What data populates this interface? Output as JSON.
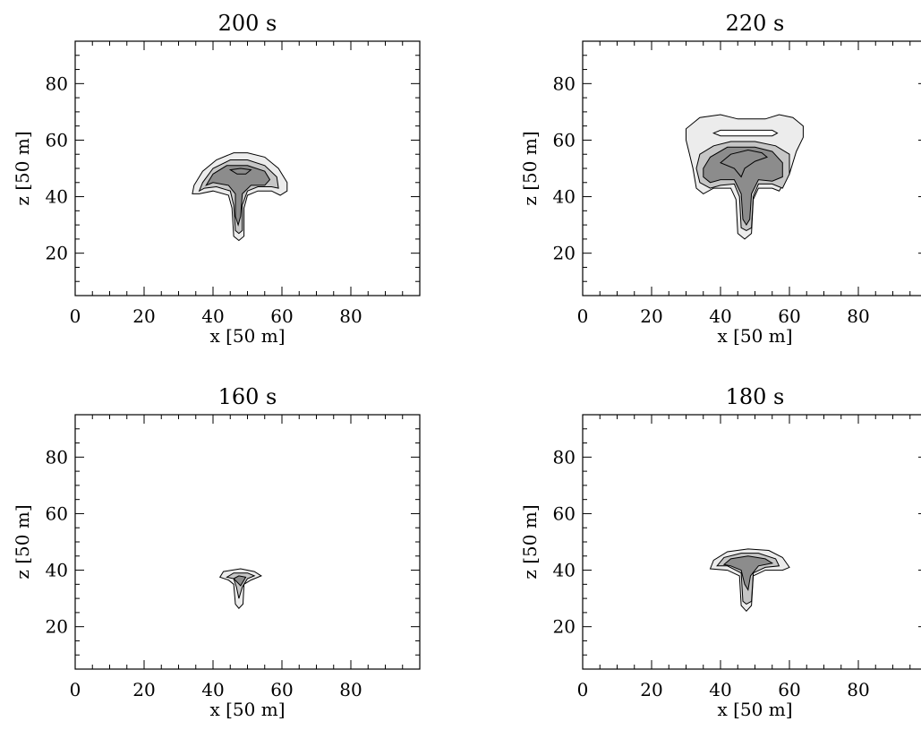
{
  "chart_data": [
    {
      "type": "contour",
      "title": "200 s",
      "xlabel": "x  [50 m]",
      "ylabel": "z  [50 m]",
      "xlim": [
        0,
        100
      ],
      "ylim": [
        5,
        95
      ],
      "xticks": [
        0,
        20,
        40,
        60,
        80
      ],
      "yticks": [
        20,
        40,
        60,
        80
      ],
      "grid": false,
      "contours": [
        {
          "level": 1,
          "fill": "#ececec",
          "points": [
            [
              34,
              41
            ],
            [
              34.5,
              44
            ],
            [
              37,
              49
            ],
            [
              41,
              53
            ],
            [
              46,
              55.5
            ],
            [
              50,
              55.5
            ],
            [
              55,
              54
            ],
            [
              59,
              50
            ],
            [
              61.5,
              45
            ],
            [
              61.5,
              42
            ],
            [
              59.5,
              40.5
            ],
            [
              57,
              42
            ],
            [
              53,
              42
            ],
            [
              50,
              40.5
            ],
            [
              49,
              36
            ],
            [
              49,
              26
            ],
            [
              47.5,
              24.5
            ],
            [
              46,
              26
            ],
            [
              45.5,
              36
            ],
            [
              44.5,
              40.5
            ],
            [
              40,
              42
            ],
            [
              36,
              41
            ],
            [
              34,
              41
            ]
          ]
        },
        {
          "level": 2,
          "fill": "#c6c6c6",
          "points": [
            [
              36,
              42
            ],
            [
              37,
              45
            ],
            [
              40,
              50
            ],
            [
              45,
              53
            ],
            [
              50,
              53
            ],
            [
              55,
              51
            ],
            [
              58.5,
              47
            ],
            [
              59,
              43
            ],
            [
              57,
              43.5
            ],
            [
              53,
              43.5
            ],
            [
              50,
              42
            ],
            [
              48.5,
              37
            ],
            [
              48.5,
              28
            ],
            [
              47.5,
              27
            ],
            [
              46.5,
              28
            ],
            [
              46,
              37
            ],
            [
              45,
              42
            ],
            [
              41,
              43.5
            ],
            [
              37.5,
              43
            ],
            [
              36,
              42
            ]
          ]
        },
        {
          "level": 3,
          "fill": "#8c8c8c",
          "points": [
            [
              38,
              44
            ],
            [
              40,
              48
            ],
            [
              44,
              51
            ],
            [
              50,
              51
            ],
            [
              55,
              49
            ],
            [
              56.5,
              46
            ],
            [
              55,
              44
            ],
            [
              51,
              44
            ],
            [
              48.5,
              41
            ],
            [
              48,
              33
            ],
            [
              47.3,
              30
            ],
            [
              46.5,
              33
            ],
            [
              46.5,
              41
            ],
            [
              44.5,
              44
            ],
            [
              40,
              45
            ],
            [
              38,
              44
            ]
          ]
        },
        {
          "level": 4,
          "fill": "#8c8c8c",
          "points": [
            [
              45,
              49.5
            ],
            [
              47,
              48
            ],
            [
              49.5,
              48
            ],
            [
              51,
              49.5
            ],
            [
              48,
              50
            ],
            [
              45,
              49.5
            ]
          ]
        }
      ]
    },
    {
      "type": "contour",
      "title": "220 s",
      "xlabel": "x  [50 m]",
      "ylabel": "z  [50 m]",
      "xlim": [
        0,
        100
      ],
      "ylim": [
        5,
        95
      ],
      "xticks": [
        0,
        20,
        40,
        60,
        80
      ],
      "yticks": [
        20,
        40,
        60,
        80
      ],
      "grid": false,
      "contours": [
        {
          "level": 1,
          "fill": "#ececec",
          "points": [
            [
              30,
              60
            ],
            [
              30,
              64
            ],
            [
              34,
              68
            ],
            [
              40,
              69
            ],
            [
              45,
              67.5
            ],
            [
              53,
              67.5
            ],
            [
              57,
              69
            ],
            [
              61,
              68
            ],
            [
              64,
              65
            ],
            [
              64,
              61
            ],
            [
              62,
              56
            ],
            [
              60,
              48
            ],
            [
              57,
              42
            ],
            [
              55,
              43
            ],
            [
              51,
              43
            ],
            [
              49.5,
              39
            ],
            [
              49,
              27
            ],
            [
              47,
              25
            ],
            [
              45,
              27
            ],
            [
              44.5,
              39
            ],
            [
              43,
              43
            ],
            [
              38,
              43
            ],
            [
              35,
              41
            ],
            [
              33,
              43
            ],
            [
              32,
              50
            ],
            [
              31,
              55
            ],
            [
              30,
              60
            ]
          ]
        },
        {
          "level": 2,
          "fill": "#c6c6c6",
          "points": [
            [
              33,
              50
            ],
            [
              34,
              55
            ],
            [
              38,
              58
            ],
            [
              43,
              59.5
            ],
            [
              50,
              59.5
            ],
            [
              56,
              58
            ],
            [
              60,
              55
            ],
            [
              60,
              48
            ],
            [
              58,
              43
            ],
            [
              55,
              44.5
            ],
            [
              51,
              44.5
            ],
            [
              49.5,
              40
            ],
            [
              49,
              29
            ],
            [
              47.5,
              28
            ],
            [
              46,
              29
            ],
            [
              45.5,
              40
            ],
            [
              44,
              44.5
            ],
            [
              40,
              44
            ],
            [
              37,
              43
            ],
            [
              34,
              45
            ],
            [
              33,
              50
            ]
          ]
        },
        {
          "level": 3,
          "fill": "#8c8c8c",
          "points": [
            [
              35,
              50
            ],
            [
              37,
              54
            ],
            [
              42,
              57.5
            ],
            [
              50,
              57.5
            ],
            [
              55,
              56
            ],
            [
              58,
              52
            ],
            [
              58,
              47
            ],
            [
              55,
              45.5
            ],
            [
              51,
              46
            ],
            [
              49,
              41
            ],
            [
              48.5,
              32
            ],
            [
              47.5,
              30
            ],
            [
              46.5,
              32
            ],
            [
              46,
              41
            ],
            [
              44,
              46
            ],
            [
              40,
              46
            ],
            [
              37,
              45
            ],
            [
              35,
              47
            ],
            [
              35,
              50
            ]
          ]
        },
        {
          "level": 4,
          "fill": "#8c8c8c",
          "points": [
            [
              40,
              52
            ],
            [
              43,
              55
            ],
            [
              48,
              56.5
            ],
            [
              52,
              55.5
            ],
            [
              53.5,
              54
            ],
            [
              50,
              52.5
            ],
            [
              47,
              50
            ],
            [
              46,
              47
            ],
            [
              44,
              50
            ],
            [
              40,
              52
            ]
          ]
        },
        {
          "level": 5,
          "fill": "#ffffff",
          "points": [
            [
              38,
              62.5
            ],
            [
              40,
              63.5
            ],
            [
              55,
              63.5
            ],
            [
              56.5,
              62.5
            ],
            [
              55,
              61.5
            ],
            [
              40,
              61.5
            ],
            [
              38,
              62.5
            ]
          ]
        }
      ]
    },
    {
      "type": "contour",
      "title": "160 s",
      "xlabel": "x  [50 m]",
      "ylabel": "z  [50 m]",
      "xlim": [
        0,
        100
      ],
      "ylim": [
        5,
        95
      ],
      "xticks": [
        0,
        20,
        40,
        60,
        80
      ],
      "yticks": [
        20,
        40,
        60,
        80
      ],
      "grid": false,
      "contours": [
        {
          "level": 1,
          "fill": "#ececec",
          "points": [
            [
              42,
              37.5
            ],
            [
              43,
              39.5
            ],
            [
              48,
              40.5
            ],
            [
              52,
              39.5
            ],
            [
              54,
              38
            ],
            [
              51,
              36.5
            ],
            [
              49,
              35
            ],
            [
              48.7,
              28
            ],
            [
              47.5,
              26.5
            ],
            [
              46.5,
              28
            ],
            [
              46,
              35
            ],
            [
              44.5,
              36.5
            ],
            [
              42,
              37.5
            ]
          ]
        },
        {
          "level": 2,
          "fill": "#c6c6c6",
          "points": [
            [
              44,
              37.5
            ],
            [
              46,
              39
            ],
            [
              50,
              39
            ],
            [
              52,
              38
            ],
            [
              50,
              37
            ],
            [
              48.5,
              34
            ],
            [
              47.5,
              30
            ],
            [
              46.8,
              34
            ],
            [
              46,
              37
            ],
            [
              44,
              37.5
            ]
          ]
        },
        {
          "level": 3,
          "fill": "#8c8c8c",
          "points": [
            [
              46,
              37
            ],
            [
              47.5,
              38
            ],
            [
              49.5,
              37.5
            ],
            [
              48,
              34.5
            ],
            [
              46,
              37
            ]
          ]
        }
      ]
    },
    {
      "type": "contour",
      "title": "180 s",
      "xlabel": "x  [50 m]",
      "ylabel": "z  [50 m]",
      "xlim": [
        0,
        100
      ],
      "ylim": [
        5,
        95
      ],
      "xticks": [
        0,
        20,
        40,
        60,
        80
      ],
      "yticks": [
        20,
        40,
        60,
        80
      ],
      "grid": false,
      "contours": [
        {
          "level": 1,
          "fill": "#ececec",
          "points": [
            [
              37,
              40.5
            ],
            [
              38,
              43.5
            ],
            [
              42,
              46.5
            ],
            [
              48,
              47.5
            ],
            [
              54,
              47
            ],
            [
              58,
              44.5
            ],
            [
              60,
              41
            ],
            [
              58,
              40
            ],
            [
              53,
              40
            ],
            [
              49.5,
              38
            ],
            [
              49,
              27.5
            ],
            [
              47.5,
              25.5
            ],
            [
              46,
              27.5
            ],
            [
              45.5,
              38
            ],
            [
              42,
              40
            ],
            [
              37,
              40.5
            ]
          ]
        },
        {
          "level": 2,
          "fill": "#c6c6c6",
          "points": [
            [
              39,
              41.5
            ],
            [
              41,
              44.5
            ],
            [
              46,
              46
            ],
            [
              51,
              46
            ],
            [
              56,
              44
            ],
            [
              57,
              41.5
            ],
            [
              53,
              41
            ],
            [
              49.5,
              39
            ],
            [
              49,
              29
            ],
            [
              47.5,
              28
            ],
            [
              46.5,
              29
            ],
            [
              46,
              39
            ],
            [
              42,
              41.5
            ],
            [
              39,
              41.5
            ]
          ]
        },
        {
          "level": 3,
          "fill": "#8c8c8c",
          "points": [
            [
              41,
              42
            ],
            [
              43,
              44
            ],
            [
              48,
              45
            ],
            [
              53,
              44
            ],
            [
              55,
              42.5
            ],
            [
              51,
              41.5
            ],
            [
              48.7,
              38
            ],
            [
              48,
              33
            ],
            [
              47,
              35
            ],
            [
              46,
              40
            ],
            [
              43,
              41.5
            ],
            [
              41,
              42
            ]
          ]
        }
      ]
    }
  ]
}
